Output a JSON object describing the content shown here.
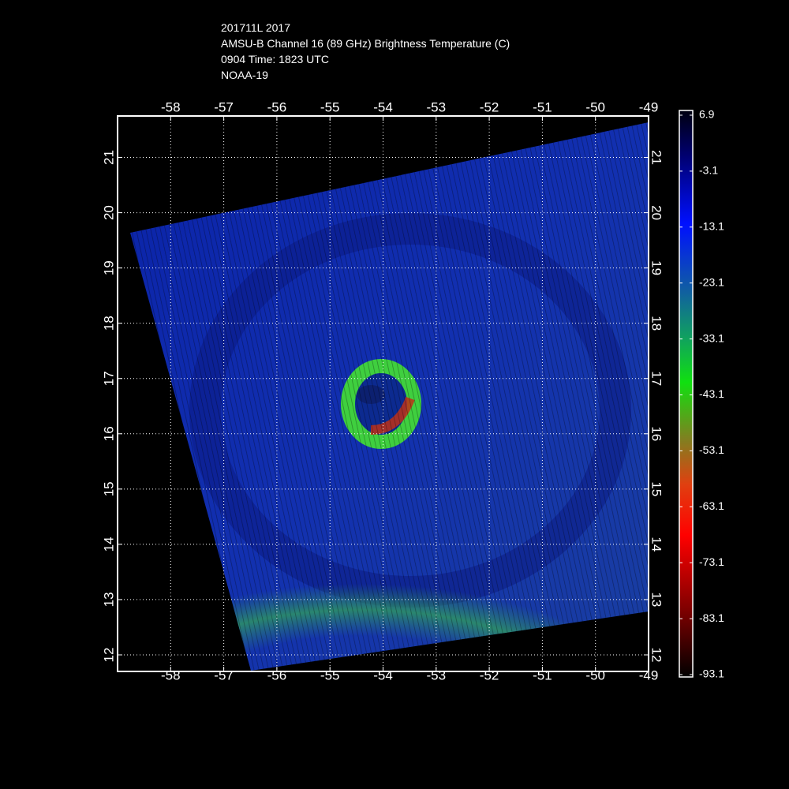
{
  "header": {
    "lines": [
      "201711L 2017",
      "AMSU-B Channel 16 (89 GHz) Brightness Temperature (C)",
      "0904 Time: 1823 UTC",
      "NOAA-19"
    ]
  },
  "map": {
    "xlim": [
      -59,
      -49
    ],
    "ylim": [
      11.7,
      21.75
    ],
    "xticks": [
      -58,
      -57,
      -56,
      -55,
      -54,
      -53,
      -52,
      -51,
      -50,
      -49
    ],
    "yticks": [
      12,
      13,
      14,
      15,
      16,
      17,
      18,
      19,
      20,
      21
    ],
    "grid": true
  },
  "colorbar": {
    "lim": [
      -93.1,
      6.9
    ],
    "ticks": [
      6.9,
      -3.1,
      -13.1,
      -23.1,
      -33.1,
      -43.1,
      -53.1,
      -63.1,
      -73.1,
      -83.1,
      -93.1
    ]
  }
}
